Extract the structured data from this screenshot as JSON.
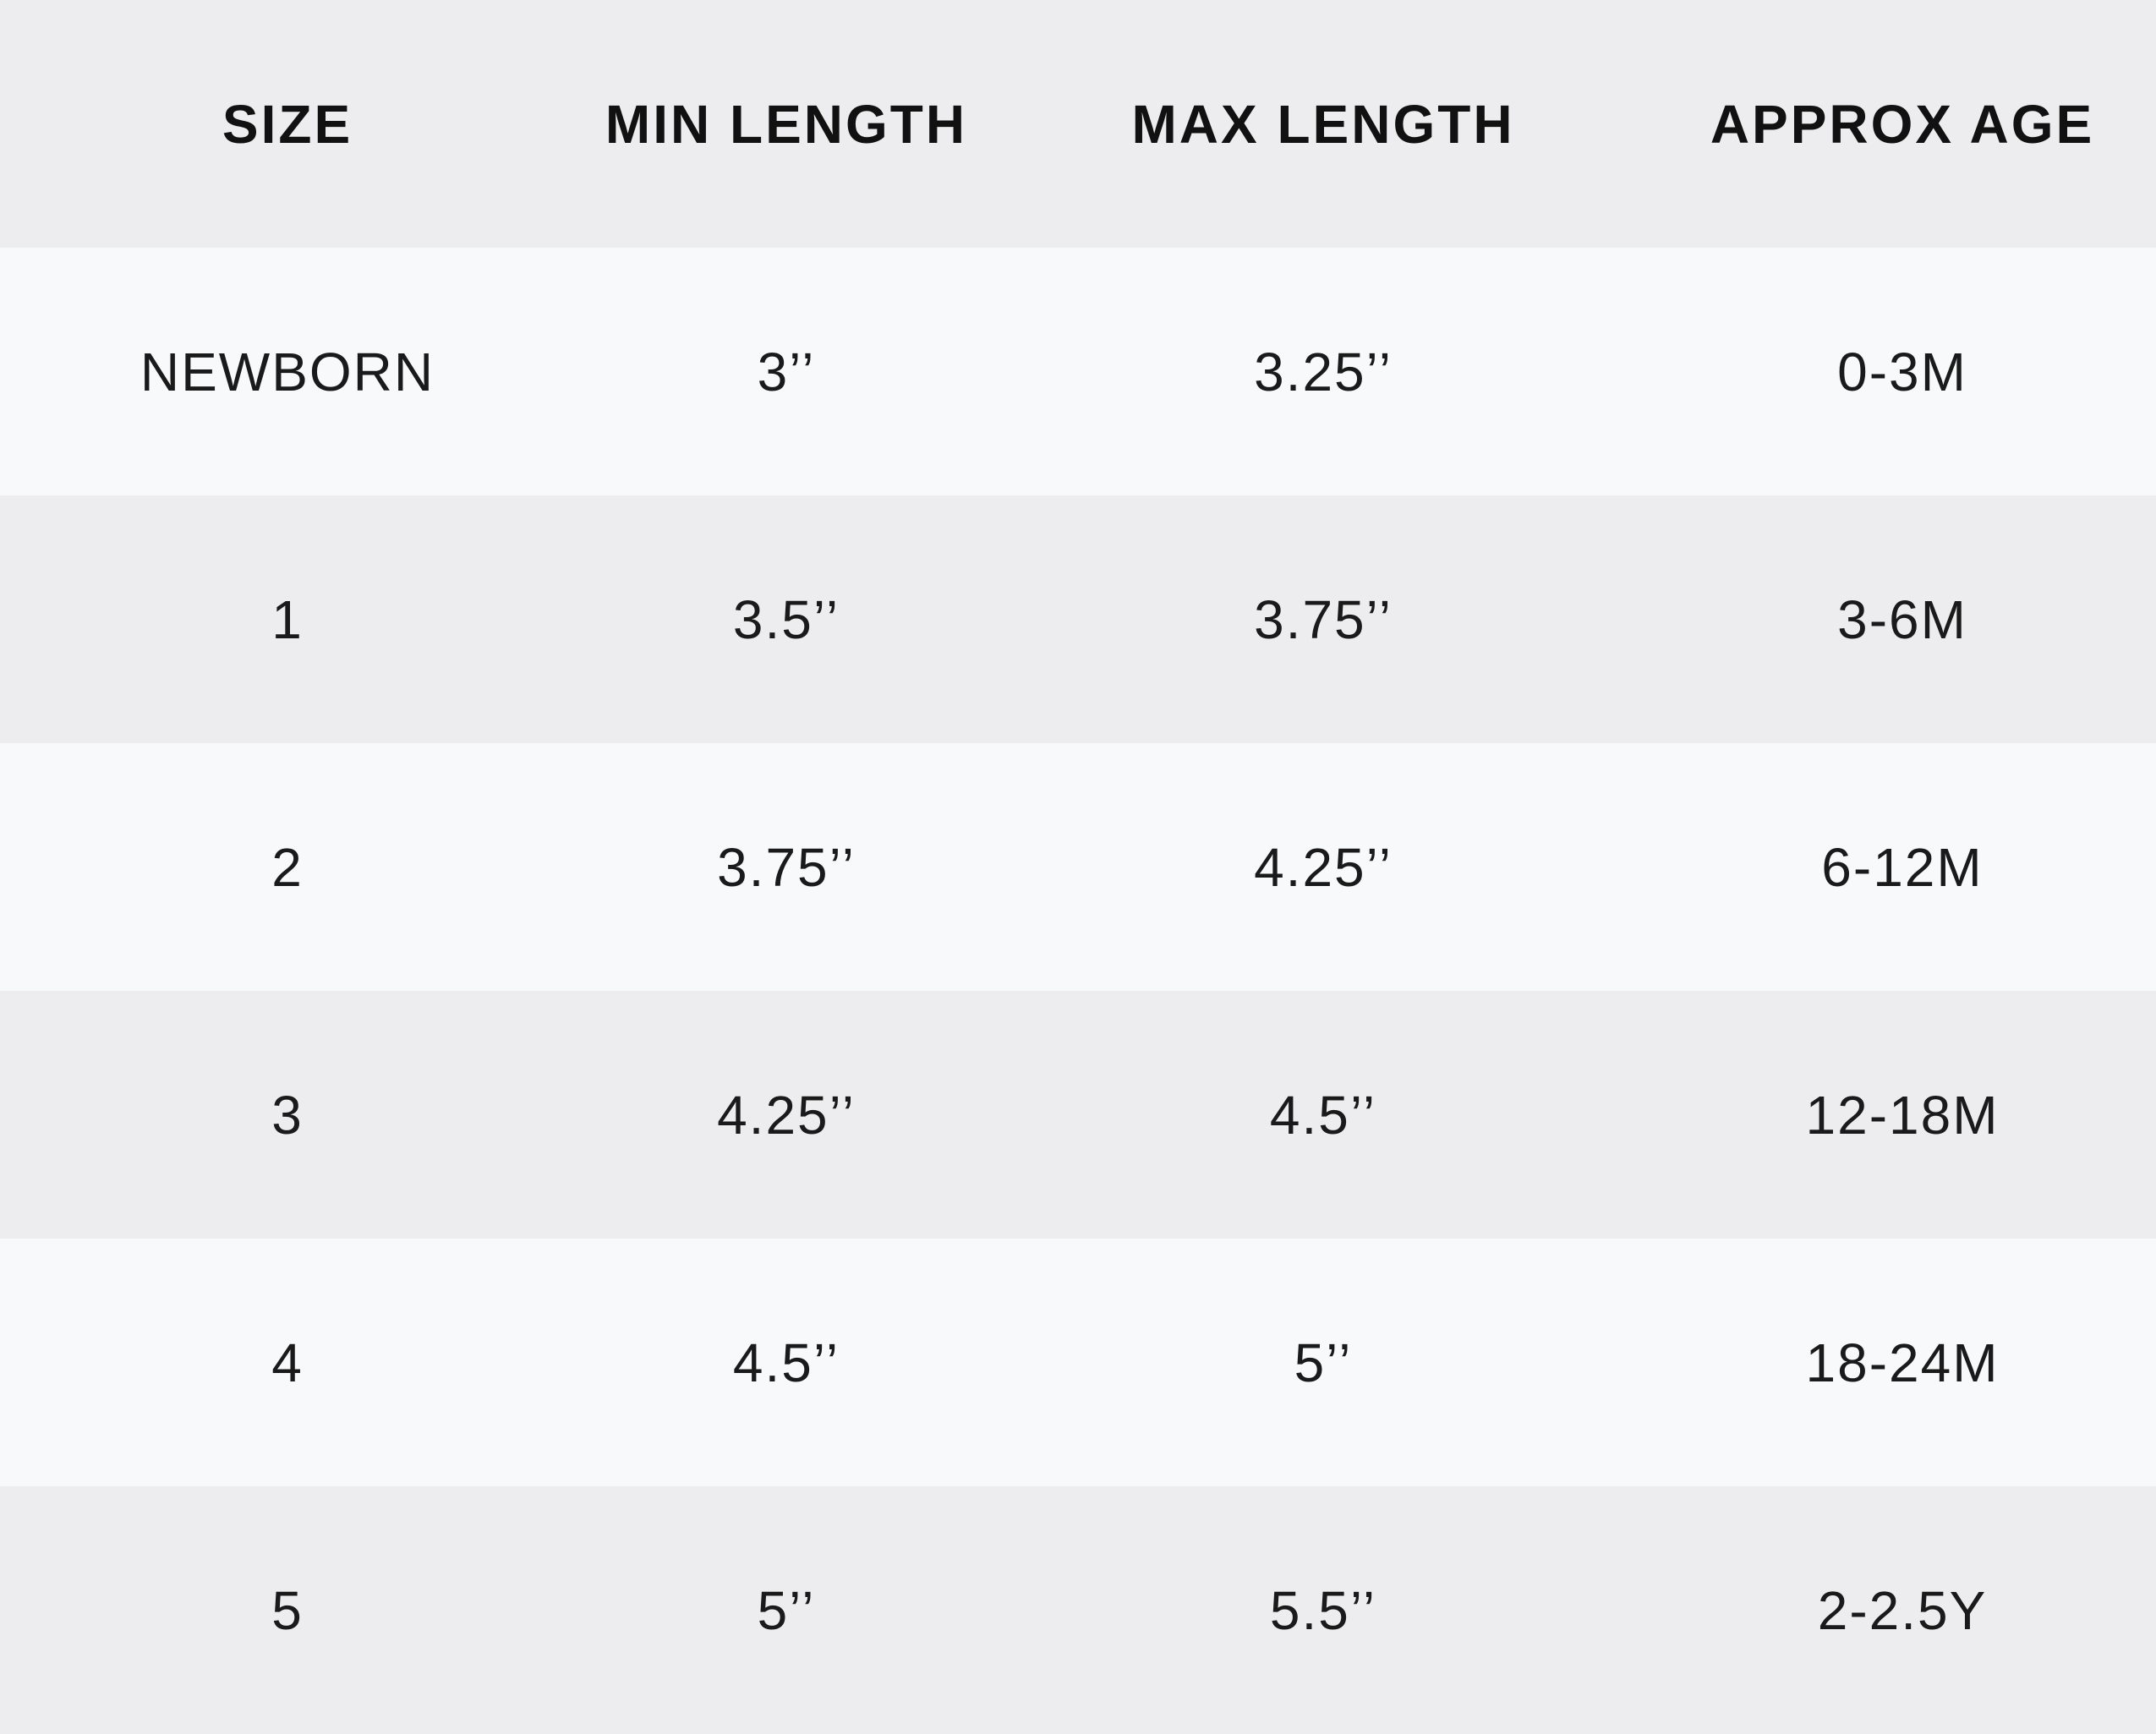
{
  "table": {
    "headers": [
      "SIZE",
      "MIN LENGTH",
      "MAX LENGTH",
      "APPROX AGE"
    ],
    "rows": [
      [
        "NEWBORN",
        "3’’",
        "3.25’’",
        "0-3M"
      ],
      [
        "1",
        "3.5’’",
        "3.75’’",
        "3-6M"
      ],
      [
        "2",
        "3.75’’",
        "4.25’’",
        "6-12M"
      ],
      [
        "3",
        "4.25’’",
        "4.5’’",
        "12-18M"
      ],
      [
        "4",
        "4.5’’",
        "5’’",
        "18-24M"
      ],
      [
        "5",
        "5’’",
        "5.5’’",
        "2-2.5Y"
      ]
    ]
  },
  "colors": {
    "header_bg": "#ededef",
    "row_light": "#f8f9fb",
    "row_dark": "#ededef",
    "text": "#111111"
  }
}
